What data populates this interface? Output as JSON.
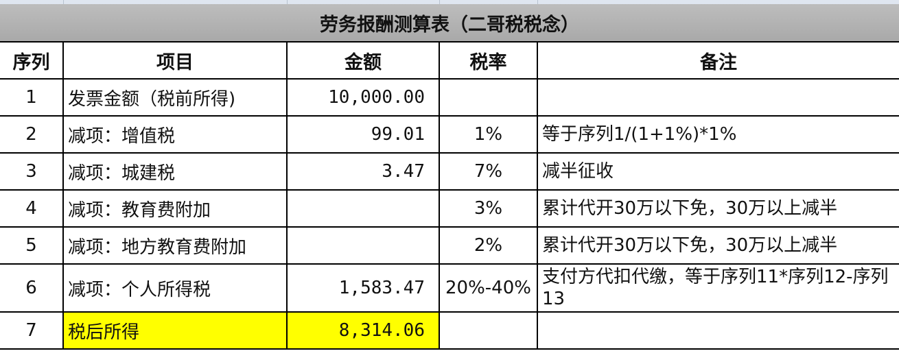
{
  "title": "劳务报酬测算表（二哥税税念）",
  "headers": [
    "序列",
    "项目",
    "金额",
    "税率",
    "备注"
  ],
  "rows": [
    {
      "seq": "1",
      "item": "发票金额（税前所得)",
      "amount": "10,000.00",
      "rate": "",
      "note": ""
    },
    {
      "seq": "2",
      "item": "减项：增值税",
      "amount": "99.01",
      "rate": "1%",
      "note": "等于序列1/(1+1%)*1%"
    },
    {
      "seq": "3",
      "item": "减项：城建税",
      "amount": "3.47",
      "rate": "7%",
      "note": "减半征收"
    },
    {
      "seq": "4",
      "item": "减项：教育费附加",
      "amount": "",
      "rate": "3%",
      "note": "累计代开30万以下免，30万以上减半"
    },
    {
      "seq": "5",
      "item": "减项：地方教育费附加",
      "amount": "",
      "rate": "2%",
      "note": "累计代开30万以下免，30万以上减半"
    },
    {
      "seq": "6",
      "item": "减项：个人所得税",
      "amount": "1,583.47",
      "rate": "20%-40%",
      "note": "支付方代扣代缴，等于序列11*序列12-序列13"
    },
    {
      "seq": "7",
      "item": "税后所得",
      "amount": "8,314.06",
      "rate": "",
      "note": ""
    }
  ],
  "highlight_color": "#ffff00"
}
